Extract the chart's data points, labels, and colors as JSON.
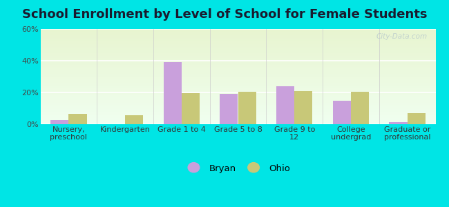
{
  "title": "School Enrollment by Level of School for Female Students",
  "categories": [
    "Nursery,\npreschool",
    "Kindergarten",
    "Grade 1 to 4",
    "Grade 5 to 8",
    "Grade 9 to\n12",
    "College\nundergrad",
    "Graduate or\nprofessional"
  ],
  "bryan_values": [
    2.5,
    0,
    39,
    19,
    24,
    15,
    1.5
  ],
  "ohio_values": [
    6.5,
    5.5,
    19.5,
    20.5,
    21,
    20.5,
    7
  ],
  "bryan_color": "#c9a0dc",
  "ohio_color": "#c8c878",
  "bg_color": "#00e5e5",
  "plot_bg_topleft": "#e8f5e8",
  "plot_bg_bottomright": "#f8ffd8",
  "ylim": [
    0,
    60
  ],
  "yticks": [
    0,
    20,
    40,
    60
  ],
  "ytick_labels": [
    "0%",
    "20%",
    "40%",
    "60%"
  ],
  "legend_labels": [
    "Bryan",
    "Ohio"
  ],
  "title_fontsize": 13,
  "tick_fontsize": 8,
  "legend_fontsize": 9.5,
  "bar_width": 0.32,
  "watermark": "City-Data.com"
}
